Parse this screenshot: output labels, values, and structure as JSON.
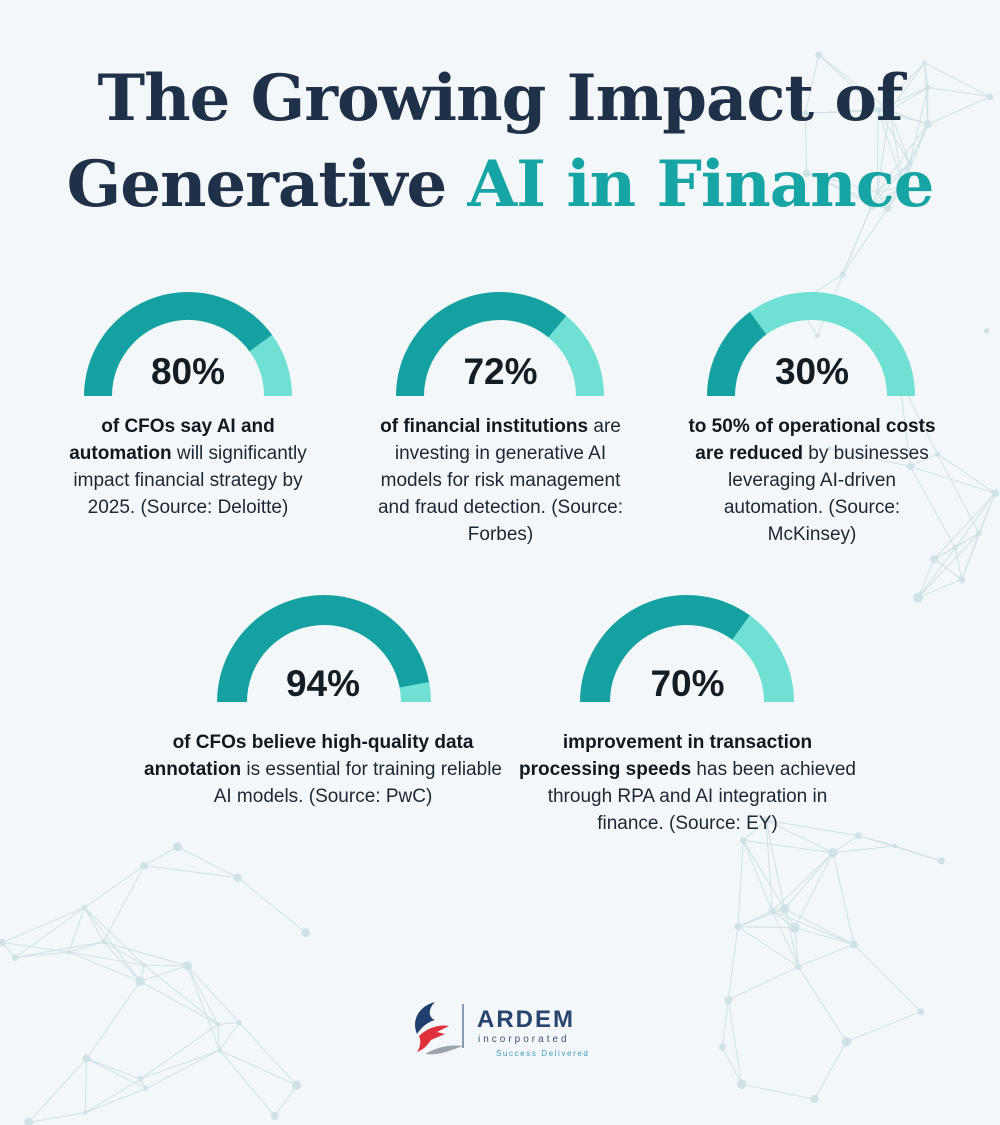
{
  "title": {
    "line1": "The Growing Impact of",
    "line2_plain": "Generative ",
    "line2_accent": "AI in Finance"
  },
  "colors": {
    "background": "#f4f7f9",
    "title": "#1f3049",
    "accent": "#16a4a4",
    "gauge_filled": "#15a1a1",
    "gauge_remaining": "#6fe0d3"
  },
  "chart_data": {
    "type": "gauge",
    "unit": "%",
    "max": 100,
    "items": [
      {
        "value": 80,
        "label": "80%",
        "bold": "of CFOs say AI and automation",
        "rest": " will significantly impact financial strategy by 2025. (Source: Deloitte)"
      },
      {
        "value": 72,
        "label": "72%",
        "bold": "of financial institutions",
        "rest": " are investing in generative AI models for risk management and fraud detection. (Source: Forbes)"
      },
      {
        "value": 30,
        "label": "30%",
        "bold": "to 50% of operational costs are reduced",
        "rest": " by businesses leveraging AI-driven automation. (Source: McKinsey)"
      },
      {
        "value": 94,
        "label": "94%",
        "bold": "of CFOs believe high-quality data annotation",
        "rest": " is essential for training reliable AI models. (Source: PwC)"
      },
      {
        "value": 70,
        "label": "70%",
        "bold": "improvement in transaction processing speeds",
        "rest": " has been achieved through RPA and AI integration in finance. (Source: EY)"
      }
    ]
  },
  "logo": {
    "name": "ARDEM",
    "subtitle": "incorporated",
    "tagline": "Success Delivered",
    "icon": "ardem-logo-icon"
  }
}
